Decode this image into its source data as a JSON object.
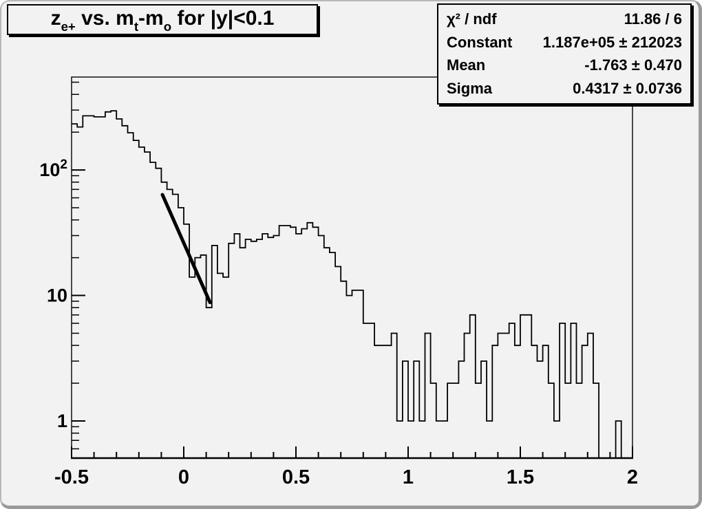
{
  "window": {
    "background": "#f2f2f2",
    "border_color": "#9a9a9a"
  },
  "title": {
    "parts": [
      "z",
      "e+",
      " vs. m",
      "t",
      "-m",
      "o",
      " for |y|<0.1"
    ]
  },
  "stats": {
    "rows": [
      {
        "label": "χ² / ndf",
        "value": "11.86 / 6"
      },
      {
        "label": "Constant",
        "value": "1.187e+05 ± 212023"
      },
      {
        "label": "Mean",
        "value": "-1.763 ± 0.470"
      },
      {
        "label": "Sigma",
        "value": "0.4317 ± 0.0736"
      }
    ]
  },
  "chart_data": {
    "type": "bar",
    "subtype": "step-histogram",
    "title": "z_e+ vs. m_t-m_o for |y|<0.1",
    "xlabel": "",
    "ylabel": "",
    "yscale": "log",
    "xlim": [
      -0.5,
      2.0
    ],
    "ylim": [
      0.506,
      550
    ],
    "grid": false,
    "legend": "none",
    "x_start": -0.5,
    "bin_width": 0.025,
    "counts": [
      233,
      220,
      270,
      270,
      265,
      265,
      290,
      296,
      255,
      225,
      198,
      172,
      152,
      139,
      115,
      103,
      80,
      70,
      64,
      50,
      37,
      14,
      20,
      21,
      8,
      25,
      15,
      14,
      26,
      31,
      24,
      28,
      27,
      28,
      31,
      29,
      30,
      36,
      36,
      35,
      31,
      34,
      38,
      35,
      30,
      24,
      22,
      17,
      13,
      10,
      11,
      11,
      6,
      6,
      4,
      4,
      4,
      5,
      1,
      3,
      1,
      3,
      1,
      5,
      2,
      1,
      1,
      2,
      2,
      3,
      5,
      7,
      2,
      3,
      1,
      4,
      5,
      5,
      6,
      4,
      7,
      7,
      4,
      3,
      4,
      2,
      1,
      6,
      2,
      6,
      2,
      4,
      5,
      2,
      0,
      0,
      0,
      1,
      0,
      0
    ],
    "xaxis": {
      "major_ticks": [
        {
          "v": -0.5,
          "label": "-0.5"
        },
        {
          "v": 0,
          "label": "0"
        },
        {
          "v": 0.5,
          "label": "0.5"
        },
        {
          "v": 1,
          "label": "1"
        },
        {
          "v": 1.5,
          "label": "1.5"
        },
        {
          "v": 2,
          "label": "2"
        }
      ],
      "minor_step": 0.1
    },
    "yaxis": {
      "major_ticks": [
        {
          "v": 1,
          "label": "1",
          "exp": ""
        },
        {
          "v": 10,
          "label": "10",
          "exp": ""
        },
        {
          "v": 100,
          "label": "10",
          "exp": "2"
        }
      ],
      "minor_ticks": [
        0.6,
        0.7,
        0.8,
        0.9,
        2,
        3,
        4,
        5,
        6,
        7,
        8,
        9,
        20,
        30,
        40,
        50,
        60,
        70,
        80,
        90,
        200,
        300,
        400,
        500
      ]
    },
    "fit_line": {
      "x1": -0.095,
      "v1": 63.5,
      "x2": 0.117,
      "v2": 8.8
    },
    "line_color": "#000000",
    "fit_color": "#000000"
  }
}
